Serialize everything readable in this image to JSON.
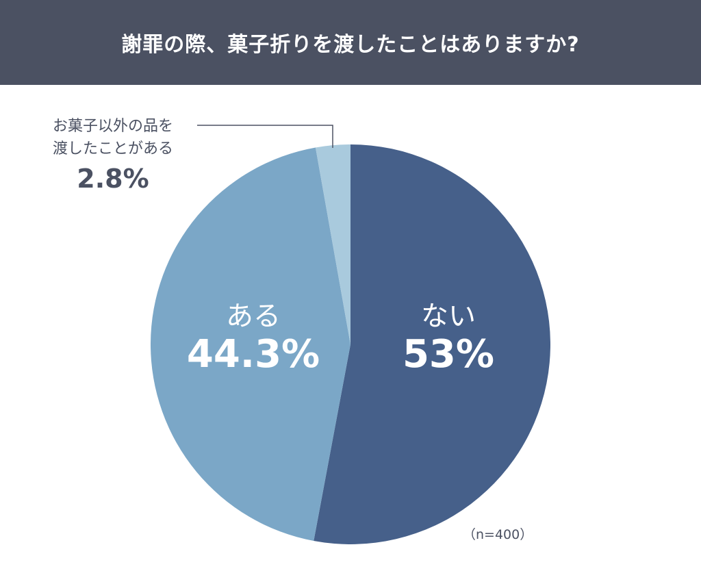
{
  "header": {
    "title": "謝罪の際、菓子折りを渡したことはありますか?",
    "background": "#4b5162"
  },
  "chart_data": {
    "type": "pie",
    "title": "謝罪の際、菓子折りを渡したことはありますか?",
    "categories": [
      "ない",
      "ある",
      "お菓子以外の品を渡したことがある"
    ],
    "values": [
      53,
      44.3,
      2.8
    ],
    "unit": "%",
    "colors": [
      "#46608a",
      "#7ba7c7",
      "#a9cadd"
    ],
    "start_angle": "12 o'clock, clockwise",
    "sample_size": "(n=400)"
  },
  "labels": {
    "nai": {
      "name": "ない",
      "pct": "53%"
    },
    "aru": {
      "name": "ある",
      "pct": "44.3%"
    },
    "other": {
      "name_line1": "お菓子以外の品を",
      "name_line2": "渡したことがある",
      "pct": "2.8%"
    }
  },
  "footer": {
    "sample": "（n=400）"
  }
}
